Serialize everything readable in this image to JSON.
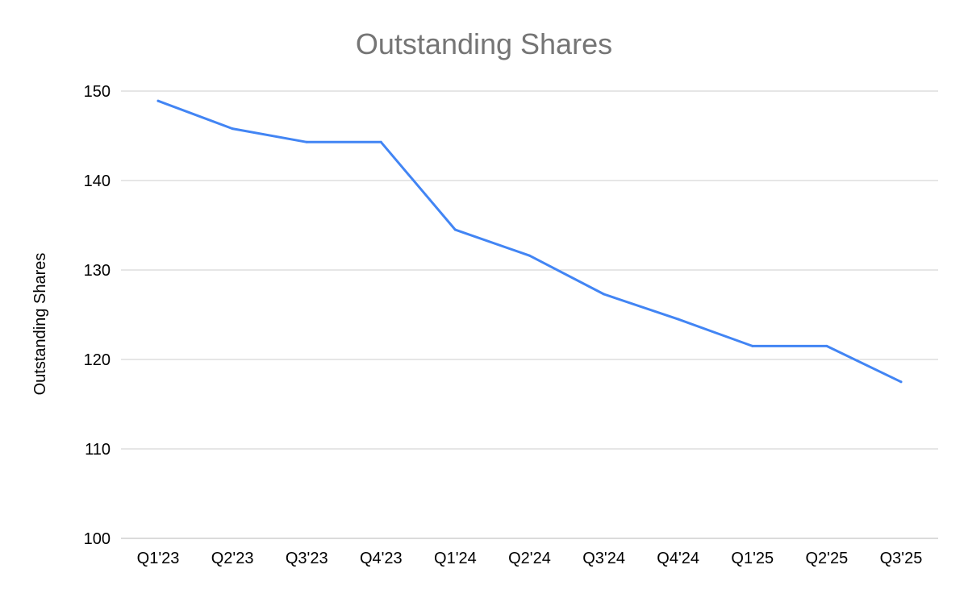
{
  "chart_data": {
    "type": "line",
    "title": "Outstanding Shares",
    "xlabel": "",
    "ylabel": "Outstanding Shares",
    "categories": [
      "Q1'23",
      "Q2'23",
      "Q3'23",
      "Q4'23",
      "Q1'24",
      "Q2'24",
      "Q3'24",
      "Q4'24",
      "Q1'25",
      "Q2'25",
      "Q3'25"
    ],
    "series": [
      {
        "values": [
          148.9,
          145.8,
          144.3,
          144.3,
          134.5,
          131.6,
          127.3,
          124.5,
          121.5,
          121.5,
          117.5
        ],
        "color": "#4285f4"
      }
    ],
    "ylim": [
      100,
      150
    ],
    "yticks": [
      100,
      110,
      120,
      130,
      140,
      150
    ],
    "grid": true,
    "legend": "none"
  }
}
